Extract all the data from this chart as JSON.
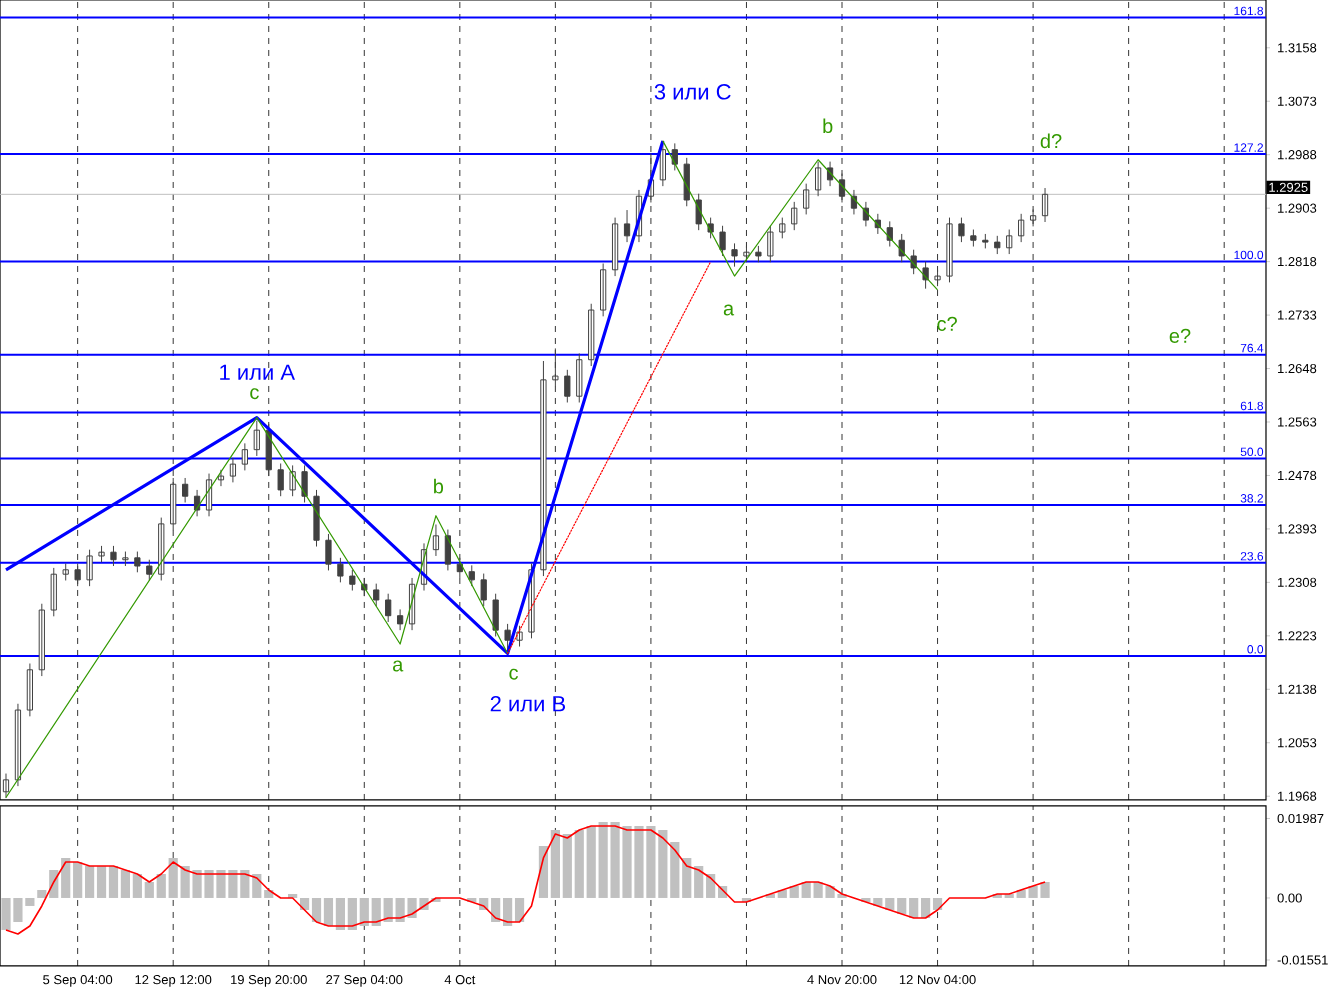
{
  "chart_data": [
    {
      "type": "candlestick",
      "categories": [
        null,
        null,
        null,
        null,
        null,
        null,
        null,
        null,
        null,
        null,
        null,
        null,
        null,
        null,
        null,
        null,
        null,
        null,
        null,
        null,
        null,
        null,
        null,
        null,
        null,
        null,
        null,
        null,
        null,
        null,
        null,
        null,
        null,
        null,
        null,
        null,
        null,
        null,
        null,
        null,
        null,
        null,
        null,
        null,
        null,
        null,
        null,
        null,
        null,
        null,
        null,
        null,
        null,
        null,
        null,
        null,
        null,
        null,
        null,
        null,
        null,
        null,
        null,
        null,
        null,
        null,
        null,
        null,
        null,
        null,
        null,
        null,
        null,
        null,
        null,
        null,
        null,
        null,
        null,
        null,
        null,
        null,
        null,
        null,
        null,
        null,
        null,
        null,
        null,
        null,
        null,
        null,
        null,
        null,
        null,
        null,
        null,
        null,
        null,
        null,
        null,
        null,
        null,
        null,
        null,
        null
      ],
      "ylim": [
        1.1962,
        1.3234
      ],
      "yticks": [
        1.1968,
        1.2053,
        1.2138,
        1.2223,
        1.2308,
        1.2393,
        1.2478,
        1.2563,
        1.2648,
        1.2733,
        1.2818,
        1.2903,
        1.2988,
        1.3073,
        1.3158
      ],
      "tick_labels": "y",
      "grid": "x",
      "series": [
        {
          "color": "#404040",
          "ohlc": [
            [
              1.1975,
              1.2004,
              1.1965,
              1.1994
            ],
            [
              1.1994,
              1.2115,
              1.1984,
              1.2105
            ],
            [
              1.2105,
              1.2179,
              1.2095,
              1.2169
            ],
            [
              1.2169,
              1.2274,
              1.2159,
              1.2264
            ],
            [
              1.2264,
              1.2331,
              1.2254,
              1.2321
            ],
            [
              1.2321,
              1.2338,
              1.2311,
              1.2328
            ],
            [
              1.2328,
              1.2338,
              1.2302,
              1.2312
            ],
            [
              1.2312,
              1.236,
              1.2302,
              1.235
            ],
            [
              1.235,
              1.2366,
              1.234,
              1.2356
            ],
            [
              1.2356,
              1.2366,
              1.2334,
              1.2344
            ],
            [
              1.2344,
              1.2357,
              1.2334,
              1.2347
            ],
            [
              1.2347,
              1.2357,
              1.2324,
              1.2334
            ],
            [
              1.2334,
              1.2344,
              1.2311,
              1.2321
            ],
            [
              1.2321,
              1.2411,
              1.2311,
              1.2401
            ],
            [
              1.2401,
              1.2474,
              1.2391,
              1.2464
            ],
            [
              1.2464,
              1.2474,
              1.2435,
              1.2445
            ],
            [
              1.2445,
              1.2455,
              1.2413,
              1.2423
            ],
            [
              1.2423,
              1.2481,
              1.2413,
              1.2471
            ],
            [
              1.2471,
              1.2487,
              1.2461,
              1.2477
            ],
            [
              1.2477,
              1.2506,
              1.2467,
              1.2496
            ],
            [
              1.2496,
              1.2529,
              1.2486,
              1.2519
            ],
            [
              1.2519,
              1.2565,
              1.2509,
              1.255
            ],
            [
              1.255,
              1.256,
              1.2477,
              1.2487
            ],
            [
              1.2487,
              1.2497,
              1.2445,
              1.2455
            ],
            [
              1.2455,
              1.2494,
              1.2445,
              1.2484
            ],
            [
              1.2484,
              1.2494,
              1.2435,
              1.2445
            ],
            [
              1.2445,
              1.2455,
              1.2365,
              1.2375
            ],
            [
              1.2375,
              1.2385,
              1.2327,
              1.2337
            ],
            [
              1.2337,
              1.2347,
              1.2308,
              1.2318
            ],
            [
              1.2318,
              1.2328,
              1.2295,
              1.2305
            ],
            [
              1.2305,
              1.2315,
              1.2286,
              1.2296
            ],
            [
              1.2296,
              1.2306,
              1.227,
              1.228
            ],
            [
              1.228,
              1.229,
              1.2245,
              1.2255
            ],
            [
              1.2255,
              1.2265,
              1.2232,
              1.2242
            ],
            [
              1.2242,
              1.2315,
              1.2232,
              1.2305
            ],
            [
              1.2305,
              1.237,
              1.2295,
              1.236
            ],
            [
              1.236,
              1.24,
              1.235,
              1.2382
            ],
            [
              1.2382,
              1.2392,
              1.2327,
              1.2337
            ],
            [
              1.2337,
              1.2347,
              1.2315,
              1.2325
            ],
            [
              1.2325,
              1.2335,
              1.2302,
              1.2312
            ],
            [
              1.2312,
              1.2322,
              1.227,
              1.228
            ],
            [
              1.228,
              1.229,
              1.2222,
              1.2232
            ],
            [
              1.2232,
              1.2242,
              1.2195,
              1.2216
            ],
            [
              1.2216,
              1.2239,
              1.2206,
              1.2229
            ],
            [
              1.2229,
              1.2338,
              1.2219,
              1.2328
            ],
            [
              1.2328,
              1.266,
              1.2318,
              1.263
            ],
            [
              1.263,
              1.268,
              1.262,
              1.2636
            ],
            [
              1.2636,
              1.2646,
              1.2594,
              1.2604
            ],
            [
              1.2604,
              1.2672,
              1.2594,
              1.2662
            ],
            [
              1.2662,
              1.2751,
              1.2652,
              1.2741
            ],
            [
              1.2741,
              1.2815,
              1.2731,
              1.2805
            ],
            [
              1.2805,
              1.2888,
              1.2795,
              1.2878
            ],
            [
              1.2878,
              1.29,
              1.2849,
              1.2859
            ],
            [
              1.2859,
              1.2932,
              1.2849,
              1.2922
            ],
            [
              1.2922,
              1.299,
              1.2912,
              1.2948
            ],
            [
              1.2948,
              1.301,
              1.2938,
              1.2996
            ],
            [
              1.2996,
              1.3006,
              1.2963,
              1.2973
            ],
            [
              1.2973,
              1.2983,
              1.2906,
              1.2916
            ],
            [
              1.2916,
              1.2926,
              1.2868,
              1.2878
            ],
            [
              1.2878,
              1.2888,
              1.2855,
              1.2865
            ],
            [
              1.2865,
              1.2875,
              1.2827,
              1.2837
            ],
            [
              1.2837,
              1.2847,
              1.281,
              1.2827
            ],
            [
              1.2827,
              1.2843,
              1.2817,
              1.2833
            ],
            [
              1.2833,
              1.2843,
              1.2817,
              1.2827
            ],
            [
              1.2827,
              1.2875,
              1.2817,
              1.2865
            ],
            [
              1.2865,
              1.2888,
              1.2855,
              1.2878
            ],
            [
              1.2878,
              1.2913,
              1.2868,
              1.2903
            ],
            [
              1.2903,
              1.2942,
              1.2893,
              1.2932
            ],
            [
              1.2932,
              1.2977,
              1.2922,
              1.2967
            ],
            [
              1.2967,
              1.2977,
              1.2938,
              1.2948
            ],
            [
              1.2948,
              1.2958,
              1.2912,
              1.2922
            ],
            [
              1.2922,
              1.2932,
              1.2893,
              1.2903
            ],
            [
              1.2903,
              1.2913,
              1.2874,
              1.2884
            ],
            [
              1.2884,
              1.2894,
              1.2862,
              1.2872
            ],
            [
              1.2872,
              1.2882,
              1.2842,
              1.2852
            ],
            [
              1.2852,
              1.2862,
              1.2817,
              1.2827
            ],
            [
              1.2827,
              1.2837,
              1.2798,
              1.2808
            ],
            [
              1.2808,
              1.2818,
              1.2775,
              1.2789
            ],
            [
              1.2789,
              1.2805,
              1.2779,
              1.2795
            ],
            [
              1.2795,
              1.2888,
              1.2785,
              1.2878
            ],
            [
              1.2878,
              1.2888,
              1.2849,
              1.2859
            ],
            [
              1.2859,
              1.2869,
              1.2842,
              1.2852
            ],
            [
              1.2852,
              1.2862,
              1.2839,
              1.2849
            ],
            [
              1.2849,
              1.2859,
              1.283,
              1.284
            ],
            [
              1.284,
              1.2869,
              1.283,
              1.2859
            ],
            [
              1.2859,
              1.2894,
              1.2849,
              1.2884
            ],
            [
              1.2884,
              1.2901,
              1.2874,
              1.2891
            ],
            [
              1.2891,
              1.2935,
              1.2881,
              1.2925
            ],
            null,
            null,
            null,
            null,
            null,
            null,
            null,
            null,
            null,
            null,
            null,
            null,
            null,
            null,
            null,
            null,
            null,
            null
          ]
        },
        {
          "type": "line",
          "color": "#0000ff",
          "values": [
            1.2328,
            null,
            null,
            null,
            null,
            null,
            null,
            null,
            null,
            null,
            null,
            null,
            null,
            null,
            null,
            null,
            null,
            null,
            null,
            null,
            null,
            1.257,
            null,
            null,
            null,
            null,
            null,
            null,
            null,
            null,
            null,
            null,
            null,
            null,
            null,
            null,
            null,
            null,
            null,
            null,
            null,
            null,
            1.2195,
            null,
            null,
            null,
            null,
            null,
            null,
            null,
            null,
            null,
            null,
            null,
            null,
            1.301,
            null,
            null,
            null,
            null,
            null,
            null,
            null,
            null,
            null,
            null,
            null,
            null,
            null,
            null,
            null,
            null,
            null,
            null,
            null,
            null,
            null,
            null,
            null,
            null,
            null,
            null,
            null,
            null,
            null,
            null,
            null,
            null,
            null,
            null,
            null,
            null,
            null,
            null,
            null,
            null,
            null,
            null,
            null,
            null,
            null,
            null,
            null,
            null,
            null,
            null
          ]
        },
        {
          "type": "line",
          "color": "#339900",
          "values": [
            1.1966,
            null,
            null,
            null,
            null,
            null,
            null,
            null,
            null,
            null,
            null,
            null,
            null,
            null,
            null,
            null,
            null,
            null,
            null,
            null,
            null,
            1.257,
            null,
            null,
            null,
            null,
            null,
            null,
            null,
            null,
            null,
            null,
            null,
            1.221,
            null,
            null,
            1.2414,
            null,
            null,
            null,
            null,
            null,
            1.2195,
            null,
            null,
            null,
            null,
            null,
            null,
            null,
            null,
            null,
            null,
            null,
            null,
            null,
            null,
            null,
            null,
            null,
            null,
            null,
            null,
            null,
            null,
            null,
            null,
            null,
            null,
            null,
            null,
            null,
            null,
            null,
            null,
            null,
            null,
            null,
            null,
            null,
            null,
            null,
            null,
            null,
            null,
            null,
            null,
            null,
            null,
            null,
            null,
            null,
            null,
            null,
            null,
            null,
            null,
            null,
            null,
            null,
            null,
            null,
            null,
            null,
            null,
            null
          ]
        },
        {
          "type": "line",
          "color": "#339900",
          "values": [
            null,
            null,
            null,
            null,
            null,
            null,
            null,
            null,
            null,
            null,
            null,
            null,
            null,
            null,
            null,
            null,
            null,
            null,
            null,
            null,
            null,
            null,
            null,
            null,
            null,
            null,
            null,
            null,
            null,
            null,
            null,
            null,
            null,
            null,
            null,
            null,
            null,
            null,
            null,
            null,
            null,
            null,
            null,
            null,
            null,
            null,
            null,
            null,
            null,
            null,
            null,
            null,
            null,
            null,
            null,
            1.301,
            null,
            null,
            null,
            null,
            null,
            1.2795,
            null,
            null,
            null,
            null,
            null,
            null,
            1.298,
            null,
            null,
            null,
            null,
            null,
            null,
            null,
            null,
            null,
            1.2773,
            null,
            null,
            null,
            null,
            null,
            null,
            null,
            null,
            null,
            null,
            null,
            null,
            null,
            null,
            null,
            null,
            null,
            null,
            null,
            null,
            null,
            null,
            null,
            null,
            null,
            null,
            null
          ]
        },
        {
          "type": "line",
          "color": "#ff0000",
          "line_style": "dotted",
          "values": [
            null,
            null,
            null,
            null,
            null,
            null,
            null,
            null,
            null,
            null,
            null,
            null,
            null,
            null,
            null,
            null,
            null,
            null,
            null,
            null,
            null,
            null,
            null,
            null,
            null,
            null,
            null,
            null,
            null,
            null,
            null,
            null,
            null,
            null,
            null,
            null,
            null,
            null,
            null,
            null,
            null,
            null,
            1.2195,
            null,
            null,
            null,
            null,
            null,
            null,
            null,
            null,
            null,
            null,
            null,
            null,
            null,
            null,
            null,
            null,
            1.2818,
            null,
            null,
            null,
            null,
            null,
            null,
            null,
            null,
            null,
            null,
            null,
            null,
            null,
            null,
            null,
            null,
            null,
            null,
            null,
            null,
            null,
            null,
            null,
            null,
            null,
            null,
            null,
            null,
            null,
            null,
            null,
            null,
            null,
            null,
            null,
            null,
            null,
            null,
            null,
            null,
            null,
            null,
            null,
            null,
            null,
            null
          ]
        }
      ],
      "ref_lines": [
        {
          "axis": "y",
          "value": 1.2191,
          "color": "#0000ff"
        },
        {
          "axis": "y",
          "value": 1.2339,
          "color": "#0000ff"
        },
        {
          "axis": "y",
          "value": 1.2431,
          "color": "#0000ff"
        },
        {
          "axis": "y",
          "value": 1.2505,
          "color": "#0000ff"
        },
        {
          "axis": "y",
          "value": 1.2578,
          "color": "#0000ff"
        },
        {
          "axis": "y",
          "value": 1.267,
          "color": "#0000ff"
        },
        {
          "axis": "y",
          "value": 1.2818,
          "color": "#0000ff"
        },
        {
          "axis": "y",
          "value": 1.2989,
          "color": "#0000ff"
        },
        {
          "axis": "y",
          "value": 1.3206,
          "color": "#0000ff"
        },
        {
          "axis": "y",
          "value": 1.2925,
          "label": "1.2925",
          "color": "#c0c0c0"
        }
      ],
      "annotations": [
        "1 или A",
        "2 или B",
        "3 или C",
        "c",
        "a",
        "b",
        "c",
        "a",
        "b",
        "c?",
        "d?",
        "e?",
        {
          "text": "0.0",
          "y": 1.2191
        },
        {
          "text": "23.6",
          "y": 1.2339
        },
        {
          "text": "38.2",
          "y": 1.2431
        },
        {
          "text": "50.0",
          "y": 1.2505
        },
        {
          "text": "61.8",
          "y": 1.2578
        },
        {
          "text": "76.4",
          "y": 1.267
        },
        {
          "text": "100.0",
          "y": 1.2818
        },
        {
          "text": "127.2",
          "y": 1.2989
        },
        {
          "text": "161.8",
          "y": 1.3206
        }
      ]
    },
    {
      "type": "bar",
      "categories": [
        null,
        null,
        null,
        null,
        null,
        null,
        "5 Sep 04:00",
        null,
        null,
        null,
        null,
        null,
        null,
        null,
        "12 Sep 12:00",
        null,
        null,
        null,
        null,
        null,
        null,
        null,
        "19 Sep 20:00",
        null,
        null,
        null,
        null,
        null,
        null,
        null,
        "27 Sep 04:00",
        null,
        null,
        null,
        null,
        null,
        null,
        null,
        "4 Oct",
        null,
        null,
        null,
        null,
        null,
        null,
        null,
        null,
        null,
        null,
        null,
        null,
        null,
        null,
        null,
        null,
        null,
        null,
        null,
        null,
        null,
        null,
        null,
        null,
        null,
        null,
        null,
        null,
        null,
        null,
        null,
        "4 Nov 20:00",
        null,
        null,
        null,
        null,
        null,
        null,
        null,
        "12 Nov 04:00",
        null,
        null,
        null,
        null,
        null,
        null,
        null,
        null,
        null,
        null,
        null,
        null,
        null,
        null,
        null,
        null,
        null,
        null,
        null,
        null,
        null,
        null,
        null,
        null,
        null,
        null,
        null
      ],
      "ylim": [
        -0.017,
        0.023
      ],
      "yticks": [
        -0.01551,
        {
          "value": 0,
          "label": "0.00"
        },
        0.01987
      ],
      "grid": "x",
      "series": [
        {
          "color": "#c0c0c0",
          "values": [
            -0.008,
            -0.006,
            -0.002,
            0.002,
            0.007,
            0.01,
            0.009,
            0.008,
            0.008,
            0.008,
            0.007,
            0.006,
            0.004,
            0.006,
            0.01,
            0.008,
            0.007,
            0.007,
            0.007,
            0.007,
            0.007,
            0.006,
            0.002,
            0.0,
            0.001,
            -0.003,
            -0.006,
            -0.007,
            -0.008,
            -0.008,
            -0.007,
            -0.007,
            -0.006,
            -0.006,
            -0.005,
            -0.003,
            -0.001,
            0.0,
            0.0,
            -0.001,
            -0.003,
            -0.006,
            -0.007,
            -0.006,
            0.0,
            0.013,
            0.017,
            0.016,
            0.017,
            0.018,
            0.019,
            0.019,
            0.018,
            0.018,
            0.018,
            0.017,
            0.014,
            0.01,
            0.008,
            0.006,
            0.003,
            0.0,
            -0.001,
            0.0,
            0.001,
            0.002,
            0.003,
            0.004,
            0.004,
            0.003,
            0.001,
            0.0,
            -0.001,
            -0.002,
            -0.003,
            -0.004,
            -0.005,
            -0.005,
            -0.003,
            0.0,
            0.0,
            0.0,
            0.0,
            0.001,
            0.001,
            0.002,
            0.003,
            0.004,
            null,
            null,
            null,
            null,
            null,
            null,
            null,
            null,
            null,
            null,
            null,
            null,
            null,
            null,
            null,
            null,
            null,
            null
          ]
        },
        {
          "type": "line",
          "color": "#ff0000",
          "values": [
            -0.008,
            -0.009,
            -0.007,
            -0.002,
            0.004,
            0.009,
            0.009,
            0.008,
            0.008,
            0.008,
            0.007,
            0.006,
            0.004,
            0.006,
            0.009,
            0.007,
            0.006,
            0.006,
            0.006,
            0.006,
            0.006,
            0.005,
            0.002,
            0.0,
            0.0,
            -0.003,
            -0.006,
            -0.007,
            -0.007,
            -0.007,
            -0.006,
            -0.006,
            -0.005,
            -0.005,
            -0.004,
            -0.002,
            0.0,
            0.0,
            0.0,
            -0.001,
            -0.002,
            -0.005,
            -0.006,
            -0.006,
            -0.002,
            0.01,
            0.016,
            0.015,
            0.017,
            0.018,
            0.018,
            0.018,
            0.017,
            0.017,
            0.017,
            0.015,
            0.012,
            0.008,
            0.007,
            0.005,
            0.002,
            -0.001,
            -0.001,
            0.0,
            0.001,
            0.002,
            0.003,
            0.004,
            0.004,
            0.003,
            0.001,
            0.0,
            -0.001,
            -0.002,
            -0.003,
            -0.004,
            -0.005,
            -0.005,
            -0.003,
            0.0,
            0.0,
            0.0,
            0.0,
            0.001,
            0.001,
            0.002,
            0.003,
            0.004,
            null,
            null,
            null,
            null,
            null,
            null,
            null,
            null,
            null,
            null,
            null,
            null,
            null,
            null,
            null,
            null,
            null,
            null
          ]
        }
      ]
    }
  ]
}
